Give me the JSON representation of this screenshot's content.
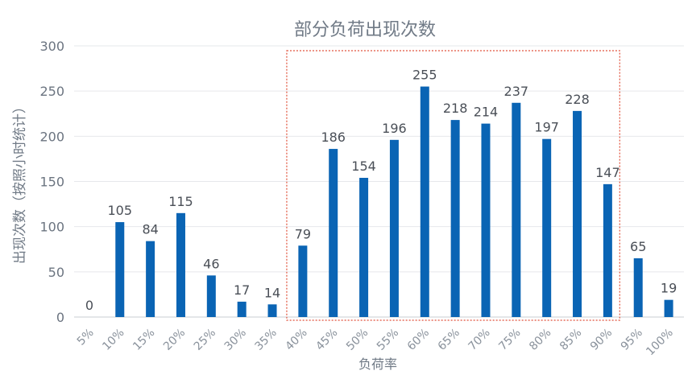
{
  "chart_data": {
    "type": "bar",
    "title": "部分负荷出现次数",
    "xlabel": "负荷率",
    "ylabel": "出现次数（按照小时统计）",
    "categories": [
      "5%",
      "10%",
      "15%",
      "20%",
      "25%",
      "30%",
      "35%",
      "40%",
      "45%",
      "50%",
      "55%",
      "60%",
      "65%",
      "70%",
      "75%",
      "80%",
      "85%",
      "90%",
      "95%",
      "100%"
    ],
    "values": [
      0,
      105,
      84,
      115,
      46,
      17,
      14,
      79,
      186,
      154,
      196,
      255,
      218,
      214,
      237,
      197,
      228,
      147,
      65,
      19
    ],
    "ylim": [
      0,
      300
    ],
    "yticks": [
      "0",
      "50",
      "100",
      "150",
      "200",
      "250",
      "300"
    ],
    "data_labels": [
      "0",
      "105",
      "84",
      "115",
      "46",
      "17",
      "14",
      "79",
      "186",
      "154",
      "196",
      "255",
      "218",
      "214",
      "237",
      "197",
      "228",
      "147",
      "65",
      "19"
    ],
    "grid": true,
    "bar_color": "#0a64b4",
    "highlight": {
      "from": "40%",
      "to": "90%",
      "color": "#e0513a",
      "style": "dotted"
    }
  }
}
